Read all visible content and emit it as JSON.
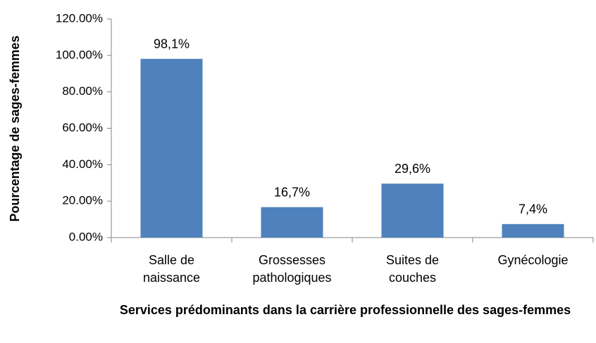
{
  "chart_data": {
    "type": "bar",
    "categories": [
      "Salle de naissance",
      "Grossesses pathologiques",
      "Suites de couches",
      "Gynécologie"
    ],
    "values": [
      98.1,
      16.7,
      29.6,
      7.4
    ],
    "value_labels": [
      "98,1%",
      "16,7%",
      "29,6%",
      "7,4%"
    ],
    "color": "#4f81bd",
    "ylim": [
      0,
      120
    ],
    "yticks": [
      {
        "value": 0,
        "label": "0.00%"
      },
      {
        "value": 20,
        "label": "20.00%"
      },
      {
        "value": 40,
        "label": "40.00%"
      },
      {
        "value": 60,
        "label": "60.00%"
      },
      {
        "value": 80,
        "label": "80.00%"
      },
      {
        "value": 100,
        "label": "100.00%"
      },
      {
        "value": 120,
        "label": "120.00%"
      }
    ],
    "y_label": "Pourcentage de sages-femmes",
    "x_label": "Services prédominants dans la carrière professionnelle des sages-femmes",
    "grid": false
  }
}
